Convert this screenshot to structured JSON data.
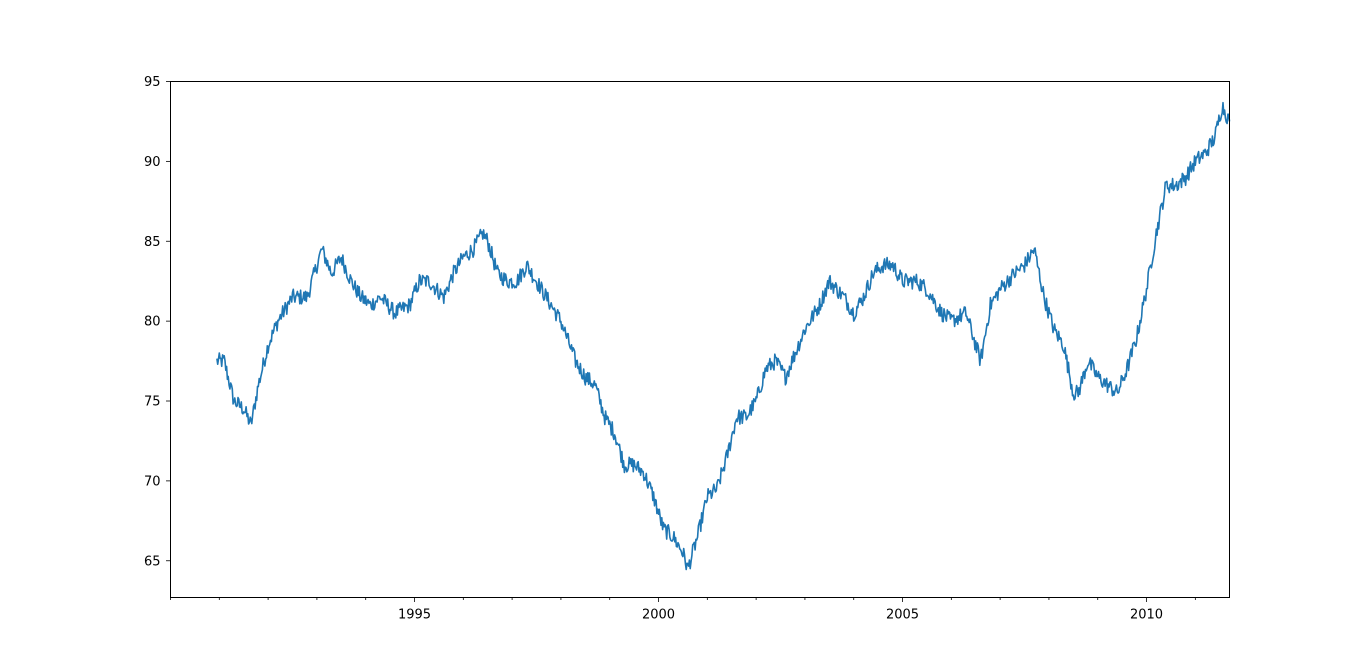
{
  "chart_data": {
    "type": "line",
    "title": "",
    "xlabel": "",
    "ylabel": "",
    "xlim": [
      1990.0,
      2011.7
    ],
    "ylim": [
      62.7,
      95.0
    ],
    "x_ticks": [
      {
        "value": 1995,
        "label": "1995"
      },
      {
        "value": 2000,
        "label": "2000"
      },
      {
        "value": 2005,
        "label": "2005"
      },
      {
        "value": 2010,
        "label": "2010"
      }
    ],
    "x_minor_ticks": [
      1990,
      1991,
      1992,
      1993,
      1994,
      1996,
      1997,
      1998,
      1999,
      2001,
      2002,
      2003,
      2004,
      2006,
      2007,
      2008,
      2009,
      2011
    ],
    "y_ticks": [
      {
        "value": 65,
        "label": "65"
      },
      {
        "value": 70,
        "label": "70"
      },
      {
        "value": 75,
        "label": "75"
      },
      {
        "value": 80,
        "label": "80"
      },
      {
        "value": 85,
        "label": "85"
      },
      {
        "value": 90,
        "label": "90"
      },
      {
        "value": 95,
        "label": "95"
      }
    ],
    "grid": false,
    "series": [
      {
        "color": "#1f77b4",
        "x": [
          1990.95,
          1991.1,
          1991.3,
          1991.5,
          1991.65,
          1991.8,
          1992.0,
          1992.2,
          1992.5,
          1992.8,
          1993.1,
          1993.3,
          1993.5,
          1993.7,
          1993.9,
          1994.1,
          1994.3,
          1994.6,
          1994.9,
          1995.1,
          1995.3,
          1995.6,
          1995.8,
          1996.0,
          1996.2,
          1996.4,
          1996.5,
          1996.7,
          1996.9,
          1997.1,
          1997.3,
          1997.5,
          1997.8,
          1998.0,
          1998.3,
          1998.5,
          1998.7,
          1998.9,
          1999.1,
          1999.3,
          1999.5,
          1999.7,
          1999.9,
          2000.1,
          2000.3,
          2000.5,
          2000.6,
          2000.8,
          2001.0,
          2001.2,
          2001.4,
          2001.6,
          2001.8,
          2002.0,
          2002.2,
          2002.4,
          2002.6,
          2002.8,
          2003.0,
          2003.3,
          2003.5,
          2003.8,
          2004.0,
          2004.2,
          2004.4,
          2004.6,
          2004.8,
          2005.0,
          2005.3,
          2005.5,
          2005.8,
          2006.0,
          2006.3,
          2006.6,
          2006.8,
          2007.0,
          2007.3,
          2007.5,
          2007.7,
          2007.9,
          2008.1,
          2008.3,
          2008.5,
          2008.6,
          2008.8,
          2009.0,
          2009.2,
          2009.4,
          2009.6,
          2009.8,
          2010.0,
          2010.2,
          2010.4,
          2010.6,
          2010.8,
          2011.0,
          2011.2,
          2011.4,
          2011.55,
          2011.7
        ],
        "y": [
          77.5,
          77.5,
          75.0,
          74.5,
          73.5,
          76.0,
          78.5,
          80.0,
          81.5,
          81.5,
          84.5,
          83.0,
          84.0,
          82.5,
          81.5,
          81.0,
          81.5,
          80.5,
          81.0,
          82.5,
          82.5,
          81.5,
          83.0,
          84.0,
          84.5,
          85.5,
          85.0,
          83.0,
          82.5,
          82.5,
          83.5,
          82.5,
          81.0,
          80.0,
          77.5,
          76.5,
          76.0,
          74.0,
          73.0,
          71.0,
          71.0,
          70.5,
          69.0,
          67.0,
          66.5,
          65.5,
          64.5,
          66.5,
          69.0,
          69.5,
          71.5,
          74.0,
          74.0,
          75.0,
          77.0,
          77.5,
          76.5,
          78.0,
          79.5,
          81.0,
          82.5,
          81.5,
          80.5,
          81.5,
          83.0,
          83.5,
          83.5,
          82.5,
          82.5,
          82.0,
          80.5,
          80.0,
          80.5,
          77.5,
          81.0,
          82.0,
          83.0,
          83.5,
          84.5,
          81.5,
          79.5,
          78.5,
          75.5,
          75.5,
          77.5,
          76.5,
          76.0,
          75.5,
          77.0,
          79.0,
          82.0,
          85.5,
          88.5,
          88.5,
          89.0,
          90.0,
          90.5,
          91.5,
          93.5,
          92.5
        ]
      }
    ]
  }
}
